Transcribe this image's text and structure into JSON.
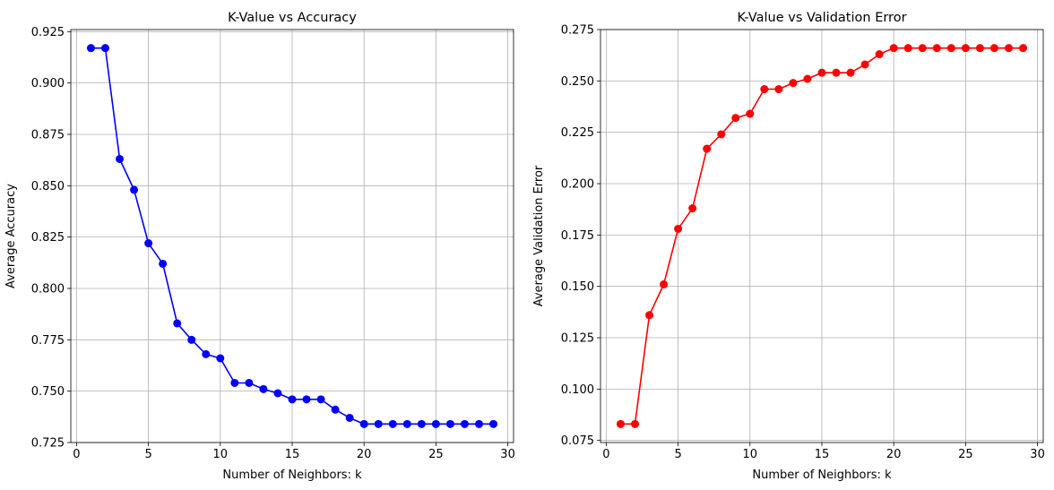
{
  "chart_data": [
    {
      "type": "line",
      "title": "K-Value vs Accuracy",
      "xlabel": "Number of Neighbors: k",
      "ylabel": "Average Accuracy",
      "xlim": [
        -0.4,
        30.4
      ],
      "ylim": [
        0.725,
        0.926
      ],
      "xticks": [
        0,
        5,
        10,
        15,
        20,
        25,
        30
      ],
      "yticks": [
        0.725,
        0.75,
        0.775,
        0.8,
        0.825,
        0.85,
        0.875,
        0.9,
        0.925
      ],
      "ytick_labels": [
        "0.725",
        "0.750",
        "0.775",
        "0.800",
        "0.825",
        "0.850",
        "0.875",
        "0.900",
        "0.925"
      ],
      "grid": true,
      "color": "#0000ff",
      "marker": "circle",
      "x": [
        1,
        2,
        3,
        4,
        5,
        6,
        7,
        8,
        9,
        10,
        11,
        12,
        13,
        14,
        15,
        16,
        17,
        18,
        19,
        20,
        21,
        22,
        23,
        24,
        25,
        26,
        27,
        28,
        29
      ],
      "values": [
        0.917,
        0.917,
        0.863,
        0.848,
        0.822,
        0.812,
        0.783,
        0.775,
        0.768,
        0.766,
        0.754,
        0.754,
        0.751,
        0.749,
        0.746,
        0.746,
        0.746,
        0.741,
        0.737,
        0.734,
        0.734,
        0.734,
        0.734,
        0.734,
        0.734,
        0.734,
        0.734,
        0.734,
        0.734
      ]
    },
    {
      "type": "line",
      "title": "K-Value vs Validation Error",
      "xlabel": "Number of Neighbors: k",
      "ylabel": "Average Validation Error",
      "xlim": [
        -0.4,
        30.4
      ],
      "ylim": [
        0.074,
        0.275
      ],
      "xticks": [
        0,
        5,
        10,
        15,
        20,
        25,
        30
      ],
      "yticks": [
        0.075,
        0.1,
        0.125,
        0.15,
        0.175,
        0.2,
        0.225,
        0.25,
        0.275
      ],
      "ytick_labels": [
        "0.075",
        "0.100",
        "0.125",
        "0.150",
        "0.175",
        "0.200",
        "0.225",
        "0.250",
        "0.275"
      ],
      "grid": true,
      "color": "#ff0000",
      "marker": "circle",
      "x": [
        1,
        2,
        3,
        4,
        5,
        6,
        7,
        8,
        9,
        10,
        11,
        12,
        13,
        14,
        15,
        16,
        17,
        18,
        19,
        20,
        21,
        22,
        23,
        24,
        25,
        26,
        27,
        28,
        29
      ],
      "values": [
        0.083,
        0.083,
        0.136,
        0.151,
        0.178,
        0.188,
        0.217,
        0.224,
        0.232,
        0.234,
        0.246,
        0.246,
        0.249,
        0.251,
        0.254,
        0.254,
        0.254,
        0.258,
        0.263,
        0.266,
        0.266,
        0.266,
        0.266,
        0.266,
        0.266,
        0.266,
        0.266,
        0.266,
        0.266
      ]
    }
  ]
}
